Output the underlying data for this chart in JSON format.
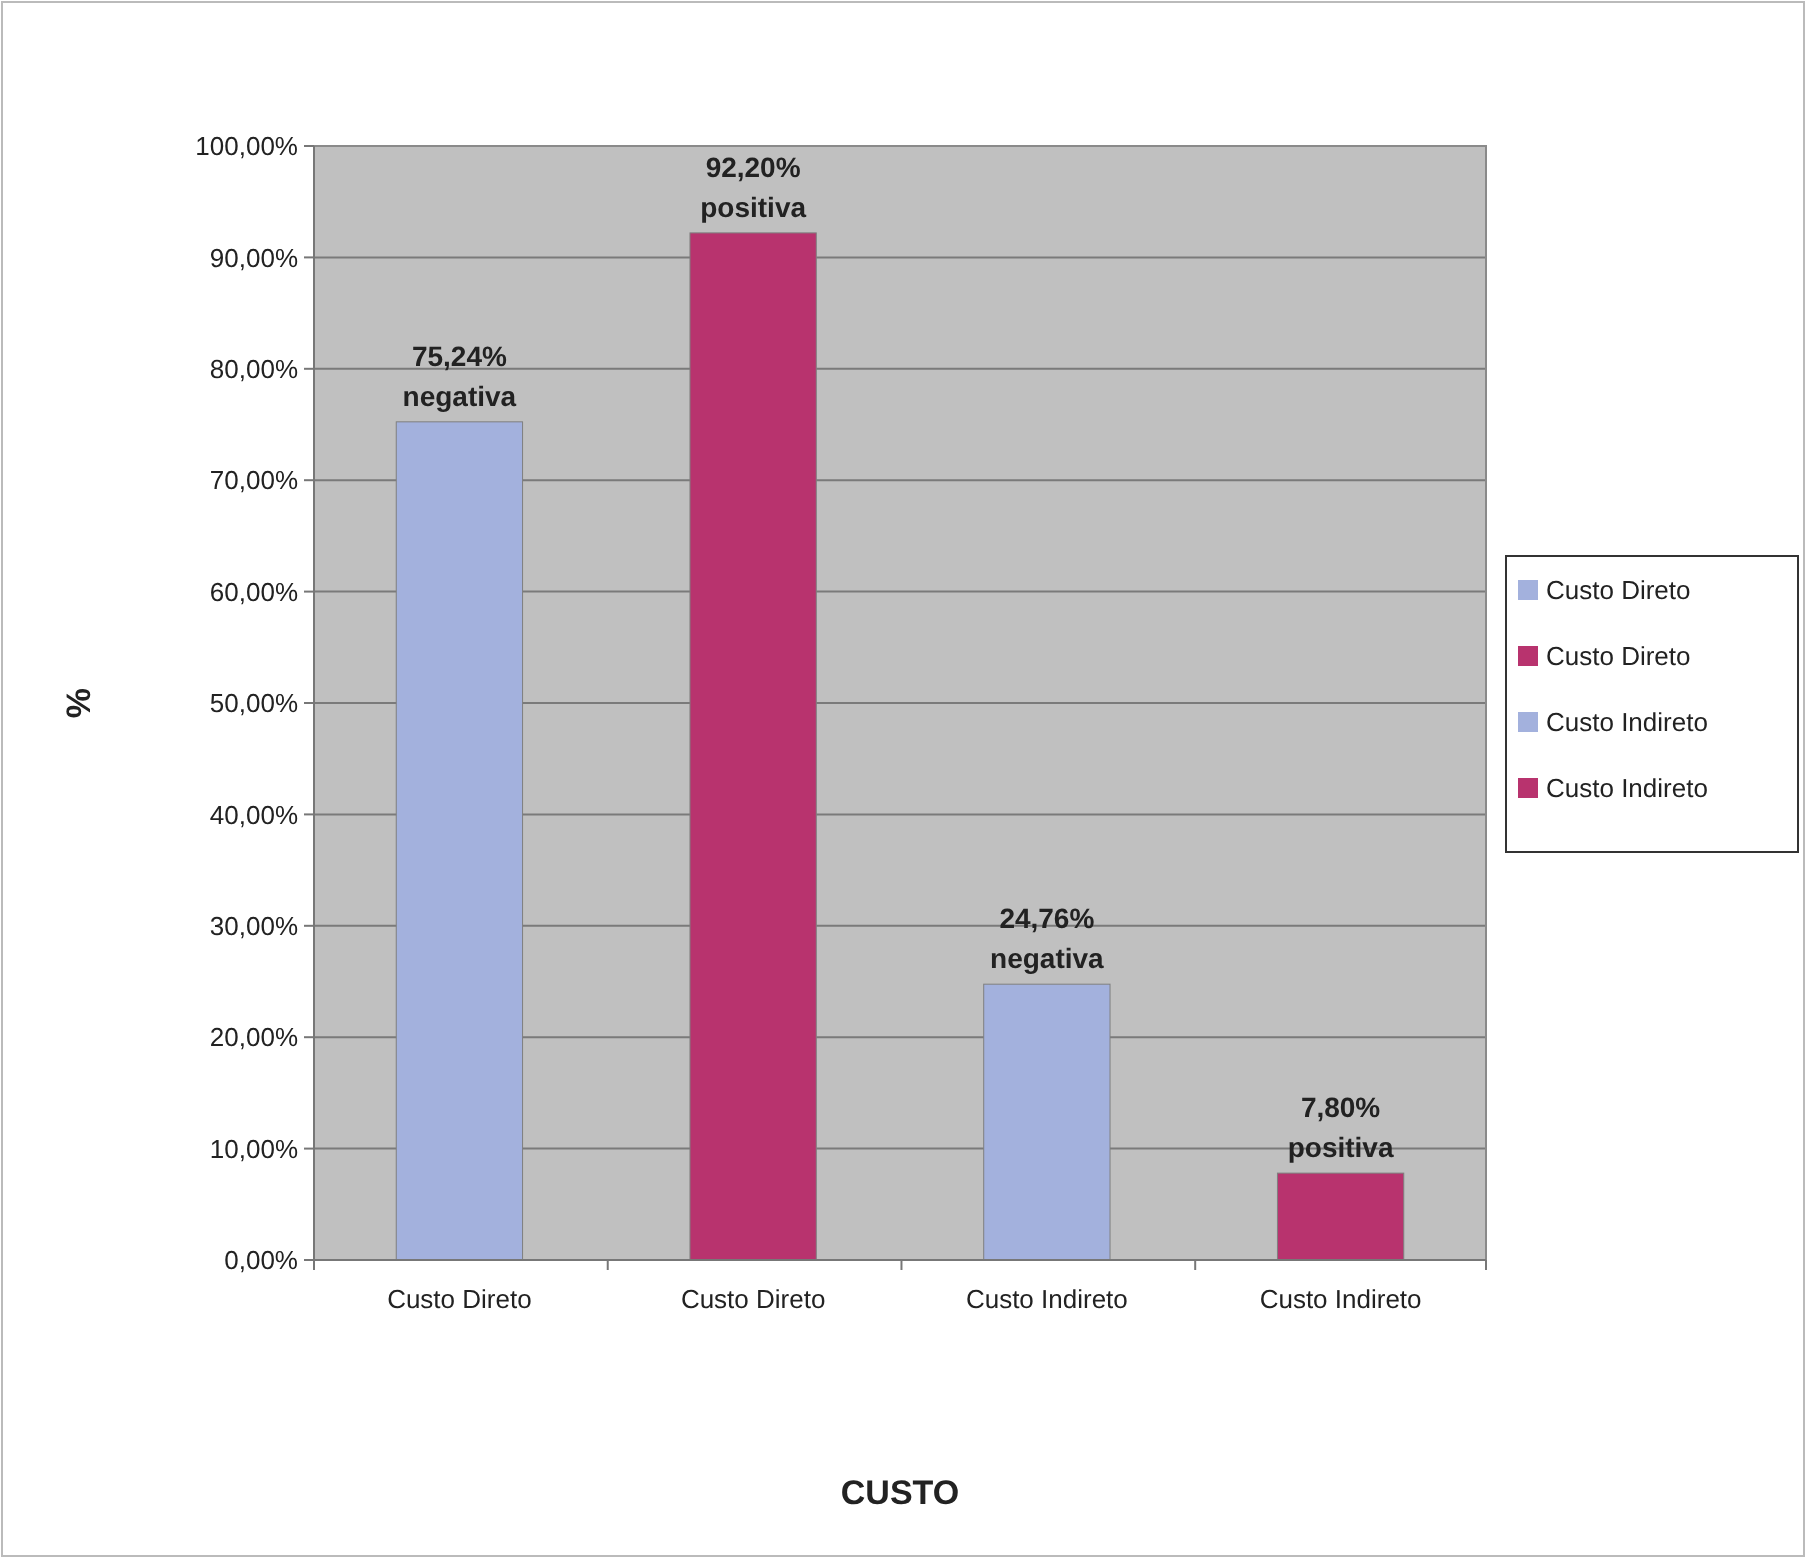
{
  "chart_data": {
    "type": "bar",
    "xlabel": "CUSTO",
    "ylabel": "%",
    "categories": [
      "Custo Direto",
      "Custo Direto",
      "Custo Indireto",
      "Custo Indireto"
    ],
    "series": [
      {
        "name": "Custo Direto",
        "color": "#a3b1dd",
        "values": [
          75.24,
          null,
          null,
          null
        ],
        "value_labels": [
          "75,24%\nnegativa",
          null,
          null,
          null
        ]
      },
      {
        "name": "Custo Direto",
        "color": "#b8336e",
        "values": [
          null,
          92.2,
          null,
          null
        ],
        "value_labels": [
          null,
          "92,20%\npositiva",
          null,
          null
        ]
      },
      {
        "name": "Custo Indireto",
        "color": "#a3b1dd",
        "values": [
          null,
          null,
          24.76,
          null
        ],
        "value_labels": [
          null,
          null,
          "24,76%\nnegativa",
          null
        ]
      },
      {
        "name": "Custo Indireto",
        "color": "#b8336e",
        "values": [
          null,
          null,
          null,
          7.8
        ],
        "value_labels": [
          null,
          null,
          null,
          "7,80%\npositiva"
        ]
      }
    ],
    "ylim": [
      0,
      100
    ],
    "yticks": [
      {
        "value": 0,
        "label": "0,00%"
      },
      {
        "value": 10,
        "label": "10,00%"
      },
      {
        "value": 20,
        "label": "20,00%"
      },
      {
        "value": 30,
        "label": "30,00%"
      },
      {
        "value": 40,
        "label": "40,00%"
      },
      {
        "value": 50,
        "label": "50,00%"
      },
      {
        "value": 60,
        "label": "60,00%"
      },
      {
        "value": 70,
        "label": "70,00%"
      },
      {
        "value": 80,
        "label": "80,00%"
      },
      {
        "value": 90,
        "label": "90,00%"
      },
      {
        "value": 100,
        "label": "100,00%"
      }
    ],
    "grid": "y",
    "legend": "right"
  }
}
